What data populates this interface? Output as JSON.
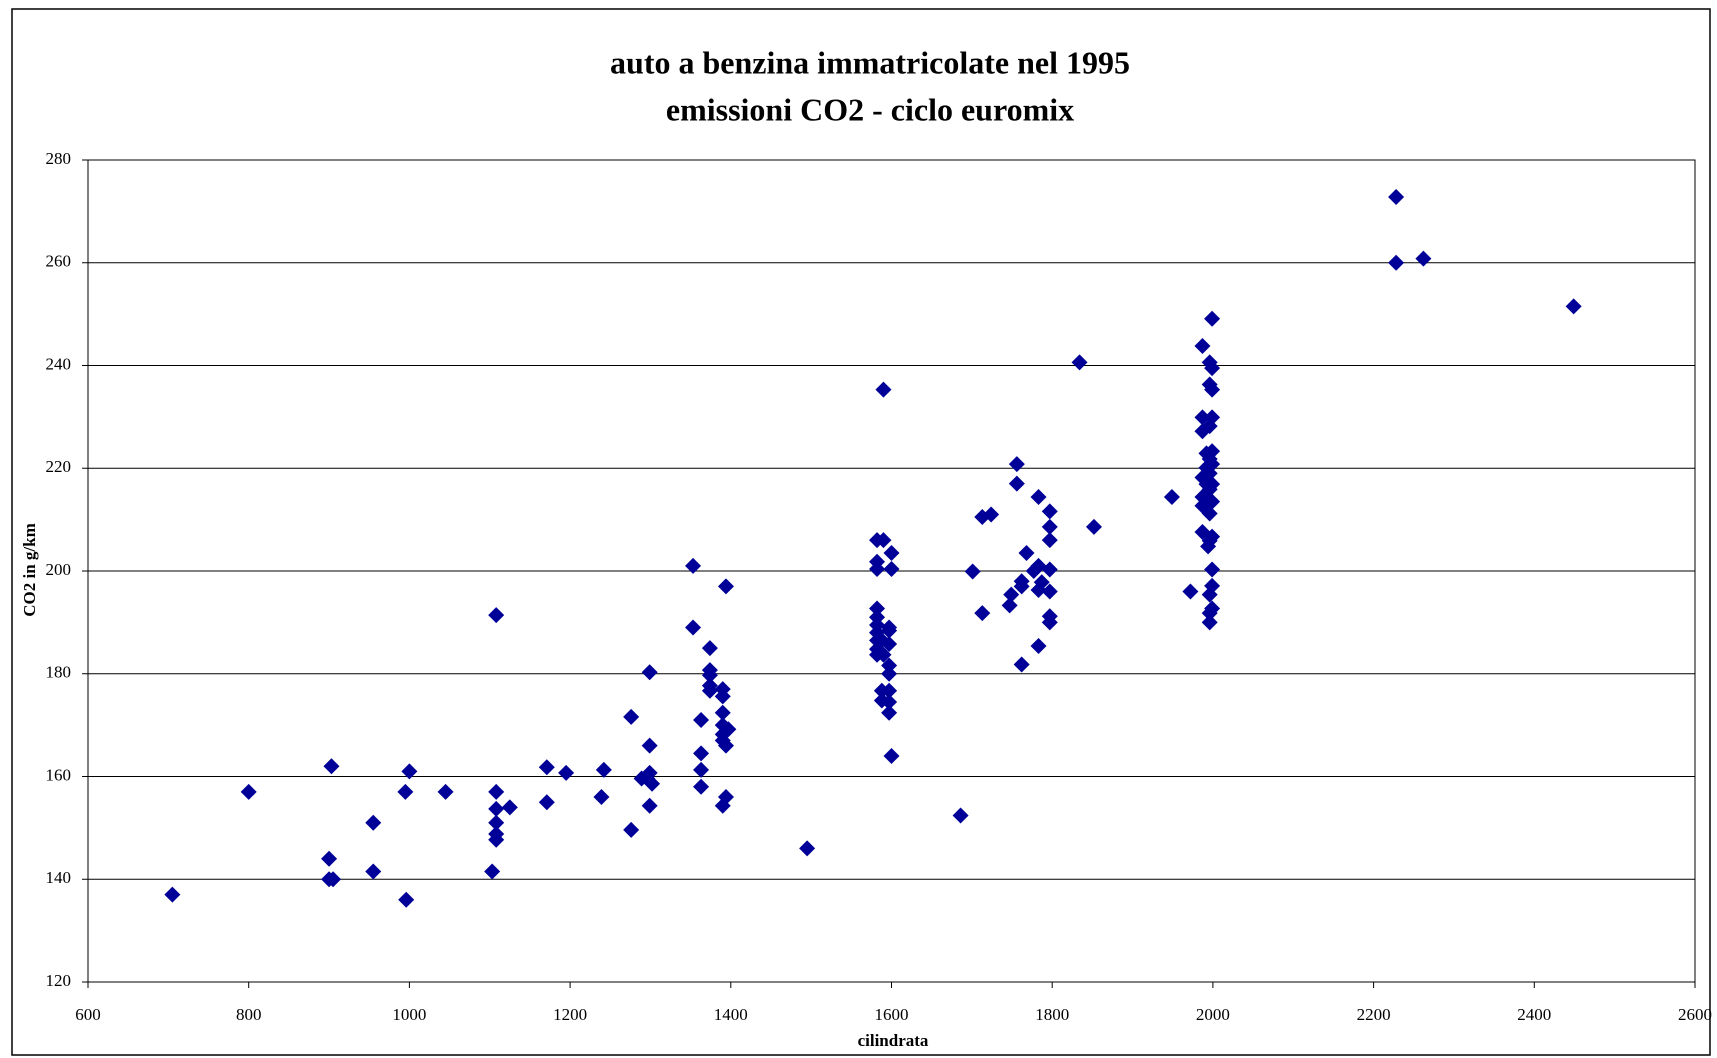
{
  "chart_data": {
    "type": "scatter",
    "title": "auto a benzina immatricolate nel 1995",
    "subtitle": "emissioni CO2 - ciclo euromix",
    "x_label": "cilindrata",
    "y_label": "CO2 in g/km",
    "color": "#000099",
    "grid": true,
    "xlim": [
      600,
      2600
    ],
    "ylim": [
      120,
      280
    ],
    "xticks": [
      600,
      800,
      1000,
      1200,
      1400,
      1600,
      1800,
      2000,
      2200,
      2400,
      2600
    ],
    "yticks": [
      120,
      140,
      160,
      180,
      200,
      220,
      240,
      260,
      280
    ],
    "x": [
      705,
      800,
      903,
      900,
      900,
      905,
      955,
      955,
      995,
      1000,
      996,
      1045,
      1108,
      1108,
      1108,
      1108,
      1108,
      1103,
      1108,
      1125,
      1171,
      1171,
      1195,
      1242,
      1239,
      1276,
      1276,
      1289,
      1296,
      1299,
      1299,
      1299,
      1299,
      1302,
      1353,
      1353,
      1363,
      1363,
      1363,
      1363,
      1374,
      1374,
      1374,
      1374,
      1374,
      1390,
      1390,
      1390,
      1390,
      1390,
      1390,
      1394,
      1397,
      1394,
      1394,
      1390,
      1495,
      1582,
      1582,
      1582,
      1582,
      1582,
      1582,
      1582,
      1582,
      1582,
      1582,
      1590,
      1590,
      1588,
      1590,
      1588,
      1588,
      1597,
      1597,
      1597,
      1597,
      1597,
      1597,
      1597,
      1600,
      1600,
      1600,
      1597,
      1686,
      1701,
      1713,
      1713,
      1724,
      1747,
      1749,
      1756,
      1756,
      1762,
      1762,
      1762,
      1768,
      1777,
      1783,
      1783,
      1783,
      1783,
      1787,
      1797,
      1797,
      1797,
      1797,
      1797,
      1797,
      1797,
      1834,
      1852,
      1949,
      1972,
      1987,
      1987,
      1987,
      1987,
      1987,
      1987,
      1987,
      1994,
      1996,
      1996,
      1996,
      1996,
      1996,
      1996,
      1996,
      1996,
      1996,
      1996,
      1996,
      1999,
      1999,
      1999,
      1999,
      1999,
      1999,
      1999,
      1999,
      1999,
      1999,
      1999,
      1999,
      1992,
      1992,
      1992,
      2228,
      2228,
      2262,
      2449
    ],
    "values": [
      137,
      157,
      162,
      144,
      140,
      140,
      151,
      141.5,
      157,
      161,
      136,
      157,
      157,
      153.7,
      151,
      148.8,
      147.7,
      141.5,
      191.4,
      154,
      161.8,
      155,
      160.7,
      161.3,
      156,
      171.6,
      149.6,
      159.6,
      159.6,
      160.7,
      166,
      180.3,
      154.3,
      158.6,
      189,
      201,
      171,
      164.5,
      161.3,
      158,
      185,
      180.7,
      179.7,
      177.7,
      176.7,
      177,
      175.6,
      172.4,
      170,
      168.2,
      167,
      166,
      169.2,
      197,
      156,
      154.3,
      146,
      200.4,
      201.8,
      206,
      192.7,
      191,
      189.5,
      188,
      186.5,
      184.8,
      183.7,
      235.3,
      206,
      186.5,
      183.7,
      176.7,
      174.8,
      188.4,
      185.8,
      181.6,
      180,
      176.7,
      174.5,
      172.4,
      203.5,
      200.4,
      164,
      189,
      152.4,
      199.9,
      191.8,
      210.5,
      211,
      193.3,
      195.4,
      220.8,
      217,
      198,
      197,
      181.8,
      203.5,
      200,
      201,
      185.4,
      196.3,
      214.4,
      197.8,
      211.6,
      208.6,
      206,
      200.3,
      196,
      191.2,
      190,
      240.6,
      208.6,
      214.4,
      196,
      243.8,
      229.9,
      227.2,
      218.2,
      214.4,
      212.7,
      207.6,
      204.8,
      240.6,
      236.3,
      228.2,
      221.8,
      219,
      215.9,
      211.2,
      205.9,
      195.4,
      191.8,
      190,
      249.1,
      239.5,
      235.3,
      229.9,
      223.3,
      220.8,
      216.9,
      213.5,
      206.7,
      200.3,
      197.1,
      192.7,
      222.9,
      220.1,
      216.9,
      272.8,
      260,
      260.8,
      251.5
    ]
  }
}
